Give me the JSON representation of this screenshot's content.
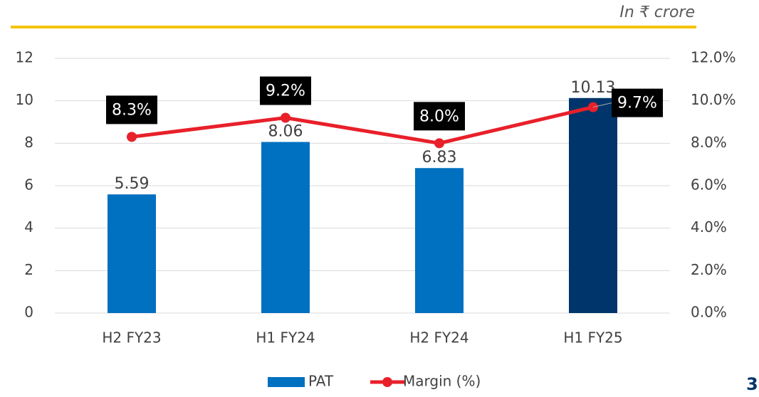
{
  "chart_data": {
    "type": "bar",
    "subtitle": "In ₹ crore",
    "categories": [
      "H2 FY23",
      "H1 FY24",
      "H2 FY24",
      "H1 FY25"
    ],
    "series": [
      {
        "name": "PAT",
        "type": "bar",
        "color": "#0070c0",
        "colors": [
          "#0070c0",
          "#0070c0",
          "#0070c0",
          "#00356b"
        ],
        "values": [
          5.59,
          8.06,
          6.83,
          10.13
        ]
      },
      {
        "name": "Margin (%)",
        "type": "line",
        "axis": "y2",
        "color": "#e8202a",
        "values": [
          8.3,
          9.2,
          8,
          9.7
        ],
        "value_labels": [
          "8.3%",
          "9.2%",
          "8.0%",
          "9.7%"
        ]
      }
    ],
    "ylim": [
      0,
      12
    ],
    "yticks": [
      0,
      2,
      4,
      6,
      8,
      10,
      12
    ],
    "y2lim": [
      0,
      12
    ],
    "y2ticks": [
      {
        "value": 0,
        "label": "0.0%"
      },
      {
        "value": 2,
        "label": "2.0%"
      },
      {
        "value": 4,
        "label": "4.0%"
      },
      {
        "value": 6,
        "label": "6.0%"
      },
      {
        "value": 8,
        "label": "8.0%"
      },
      {
        "value": 10,
        "label": "10.0%"
      },
      {
        "value": 12,
        "label": "12.0%"
      }
    ],
    "grid": true,
    "legend": "bottom",
    "page_number": "3"
  }
}
